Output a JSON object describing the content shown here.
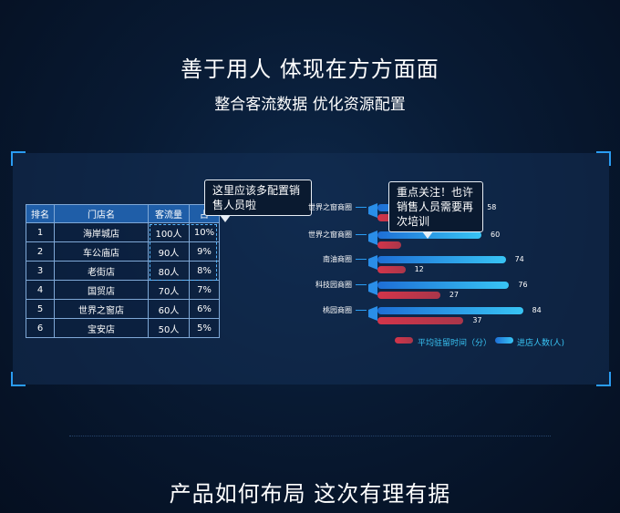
{
  "headline": "善于用人 体现在方方面面",
  "subheadline": "整合客流数据 优化资源配置",
  "footer": "产品如何布局 这次有理有据",
  "table": {
    "headers": [
      "排名",
      "门店名",
      "客流量",
      "占"
    ],
    "rows": [
      {
        "rank": "1",
        "store": "海岸城店",
        "traffic": "100人",
        "share": "10%"
      },
      {
        "rank": "2",
        "store": "车公庙店",
        "traffic": "90人",
        "share": "9%"
      },
      {
        "rank": "3",
        "store": "老街店",
        "traffic": "80人",
        "share": "8%"
      },
      {
        "rank": "4",
        "store": "国贸店",
        "traffic": "70人",
        "share": "7%"
      },
      {
        "rank": "5",
        "store": "世界之窗店",
        "traffic": "60人",
        "share": "6%"
      },
      {
        "rank": "6",
        "store": "宝安店",
        "traffic": "50人",
        "share": "5%"
      }
    ]
  },
  "bubble1": "这里应该多配置销售人员啦",
  "bubble2": "重点关注！也许销售人员需要再次培训",
  "chart_data": {
    "type": "bar",
    "categories": [
      "世界之窗商圈",
      "世界之窗商圈",
      "南油商圈",
      "科技园商圈",
      "桃园商圈"
    ],
    "series": [
      {
        "name": "进店人数(人)",
        "values": [
          58,
          60,
          74,
          76,
          84
        ],
        "color": "#38c4f4"
      },
      {
        "name": "平均驻留时间（分）",
        "values": [
          null,
          10,
          12,
          27,
          37
        ],
        "color": "#d3354a"
      }
    ],
    "value_labels": {
      "blue": [
        "58",
        "60",
        "74",
        "76",
        "84"
      ],
      "red": [
        "",
        "",
        "12",
        "27",
        "37"
      ]
    }
  },
  "legend": {
    "red_label": "平均驻留时间（分）",
    "blue_label": "进店人数(人)"
  }
}
